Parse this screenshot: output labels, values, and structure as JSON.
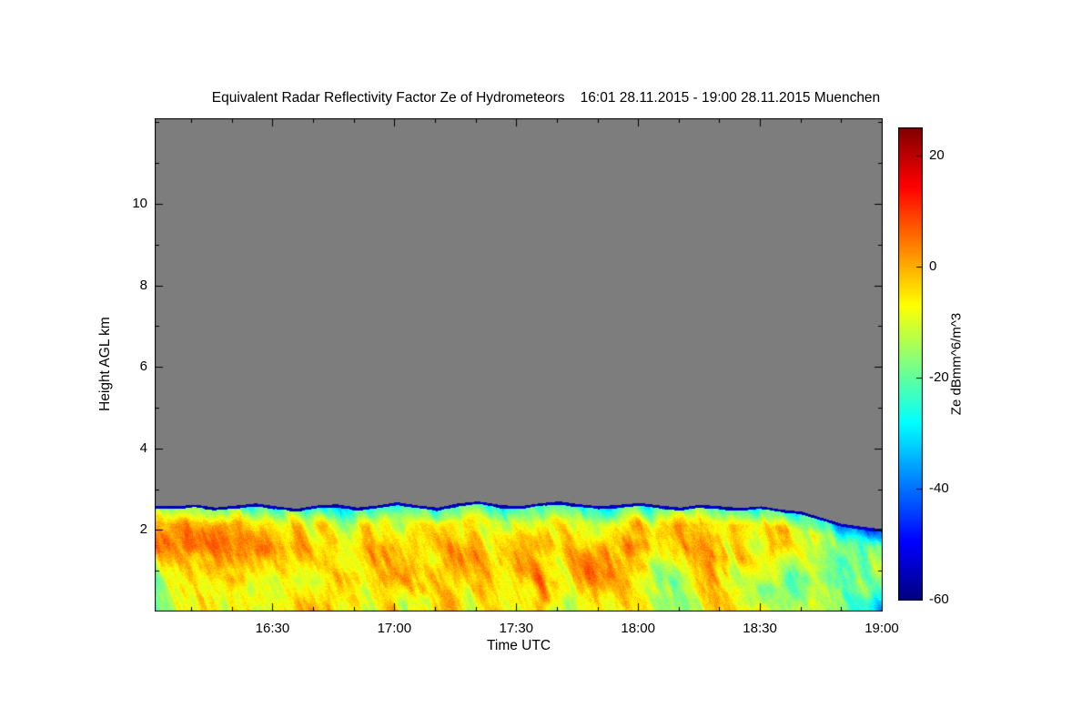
{
  "chart_data": {
    "type": "heatmap",
    "title": "Equivalent Radar Reflectivity Factor Ze of Hydrometeors    16:01 28.11.2015 - 19:00 28.11.2015 Muenchen",
    "xlabel": "Time UTC",
    "ylabel": "Height AGL km",
    "x_start_label": "16:01",
    "x_end_label": "19:00",
    "x_total_min": 179,
    "x_ticks": [
      {
        "label": "16:30",
        "min": 29
      },
      {
        "label": "17:00",
        "min": 59
      },
      {
        "label": "17:30",
        "min": 89
      },
      {
        "label": "18:00",
        "min": 119
      },
      {
        "label": "18:30",
        "min": 149
      },
      {
        "label": "19:00",
        "min": 179
      }
    ],
    "x_minor_start_min": 9,
    "x_minor_step_min": 10,
    "y_range_km": [
      0,
      12.1
    ],
    "y_ticks": [
      2,
      4,
      6,
      8,
      10
    ],
    "y_minor_step_km": 1,
    "no_data_color": "#7d7d7d",
    "colorbar": {
      "label": "Ze dBmm^6/m^3",
      "range": [
        -60,
        25
      ],
      "ticks": [
        20,
        0,
        -20,
        -40,
        -60
      ],
      "colormap": [
        {
          "pos": 0.0,
          "color": "#000080"
        },
        {
          "pos": 0.125,
          "color": "#0000ff"
        },
        {
          "pos": 0.375,
          "color": "#00ffff"
        },
        {
          "pos": 0.625,
          "color": "#ffff00"
        },
        {
          "pos": 0.875,
          "color": "#ff0000"
        },
        {
          "pos": 1.0,
          "color": "#800000"
        }
      ]
    },
    "echo_top_km": [
      2.6,
      2.58,
      2.62,
      2.55,
      2.6,
      2.65,
      2.58,
      2.52,
      2.6,
      2.63,
      2.55,
      2.6,
      2.68,
      2.6,
      2.55,
      2.65,
      2.7,
      2.62,
      2.58,
      2.65,
      2.7,
      2.63,
      2.58,
      2.62,
      2.66,
      2.6,
      2.55,
      2.62,
      2.58,
      2.54,
      2.58,
      2.5,
      2.45,
      2.3,
      2.15,
      2.08,
      2.02
    ],
    "cloud_top_line_dbz": -54,
    "field": {
      "mean_dbz": -8,
      "streak_amp_dbz": 28,
      "blob_amp_dbz": 18,
      "top_cool_depth_km": 0.45,
      "top_cool_dbz": 16,
      "subtop_warm_dbz": 4,
      "mid_warm_dbz": 6,
      "left_cool_frac": 0.1,
      "left_cool_dbz": 14,
      "right_cool_start_frac": 0.8,
      "right_cool_dbz": 20
    }
  }
}
